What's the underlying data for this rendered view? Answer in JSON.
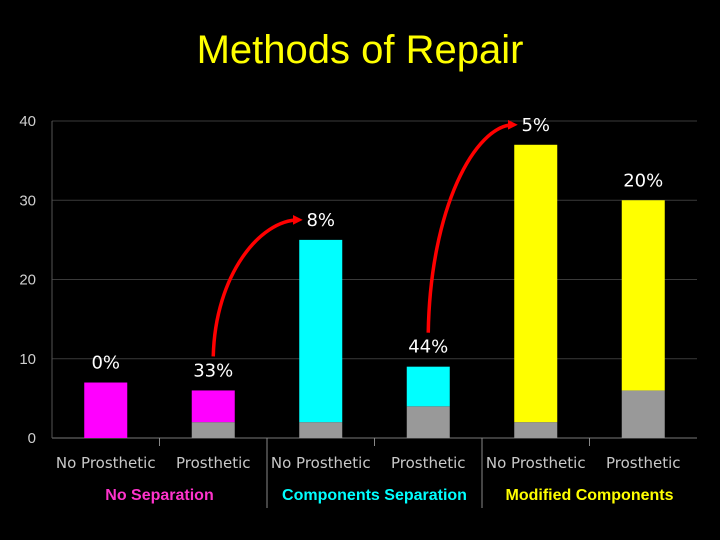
{
  "chart_data": {
    "type": "bar",
    "title": "Methods of Repair",
    "xlabel": "",
    "ylabel": "",
    "ylim": [
      0,
      40
    ],
    "y_ticks": [
      "0",
      "10",
      "20",
      "30",
      "40"
    ],
    "grid": true,
    "legend": "none",
    "categories": [
      "No Prosthetic",
      "Prosthetic",
      "No Prosthetic",
      "Prosthetic",
      "No Prosthetic",
      "Prosthetic"
    ],
    "groups": [
      {
        "label": "No Separation",
        "color": "#ff33cc",
        "category_indices": [
          0,
          1
        ]
      },
      {
        "label": "Components Separation",
        "color": "#00ffff",
        "category_indices": [
          2,
          3
        ]
      },
      {
        "label": "Modified Components",
        "color": "#ffff00",
        "category_indices": [
          4,
          5
        ]
      }
    ],
    "series": [
      {
        "values": [
          0,
          2,
          2,
          4,
          2,
          6
        ],
        "color": "#999999"
      },
      {
        "values": [
          7,
          4,
          23,
          5,
          35,
          24
        ],
        "colors": [
          "#ff00ff",
          "#ff00ff",
          "#00ffff",
          "#00ffff",
          "#ffff00",
          "#ffff00"
        ]
      }
    ],
    "bar_labels": [
      "0%",
      "33%",
      "8%",
      "44%",
      "5%",
      "20%"
    ],
    "annotations": [
      {
        "type": "arrow",
        "from_label": "33%",
        "to_label": "8%",
        "color": "#ff0000"
      },
      {
        "type": "arrow",
        "from_label": "44%",
        "to_label": "5%",
        "color": "#ff0000"
      }
    ]
  }
}
